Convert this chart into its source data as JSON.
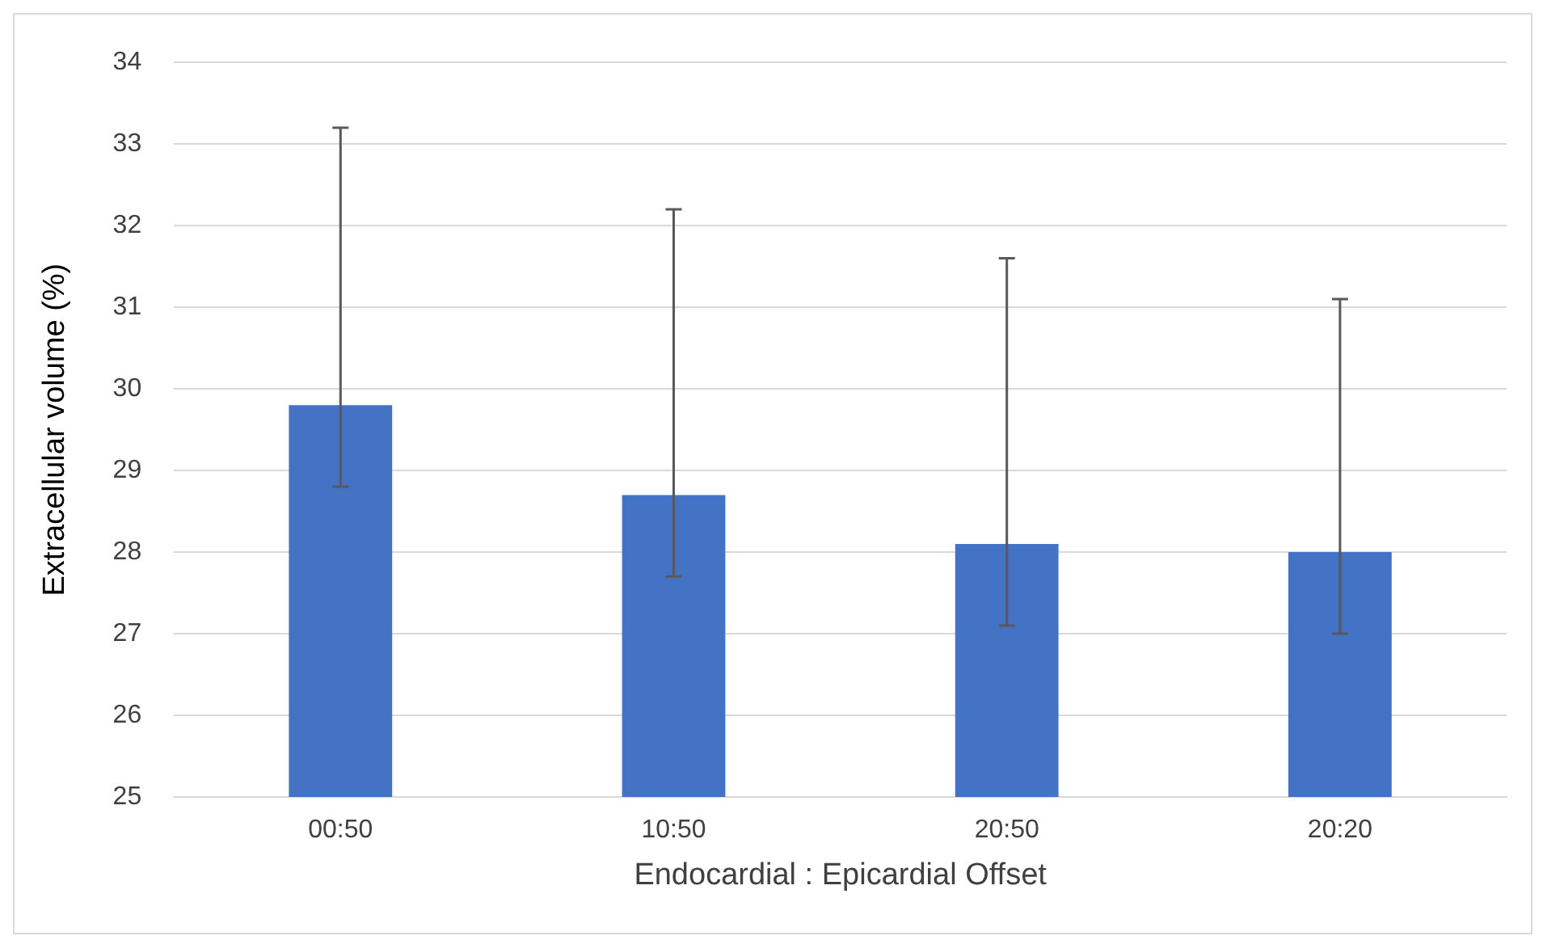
{
  "chart_data": {
    "type": "bar",
    "xlabel": "Endocardial : Epicardial Offset",
    "ylabel": "Extracellular volume (%)",
    "categories": [
      "00:50",
      "10:50",
      "20:50",
      "20:20"
    ],
    "values": [
      29.8,
      28.7,
      28.1,
      28.0
    ],
    "errors": [
      [
        28.8,
        33.2
      ],
      [
        27.7,
        32.2
      ],
      [
        27.1,
        31.6
      ],
      [
        27.0,
        31.1
      ]
    ],
    "color": "#4472c4",
    "ylim": [
      25,
      34
    ],
    "yticks": [
      25,
      26,
      27,
      28,
      29,
      30,
      31,
      32,
      33,
      34
    ],
    "grid": "y"
  }
}
